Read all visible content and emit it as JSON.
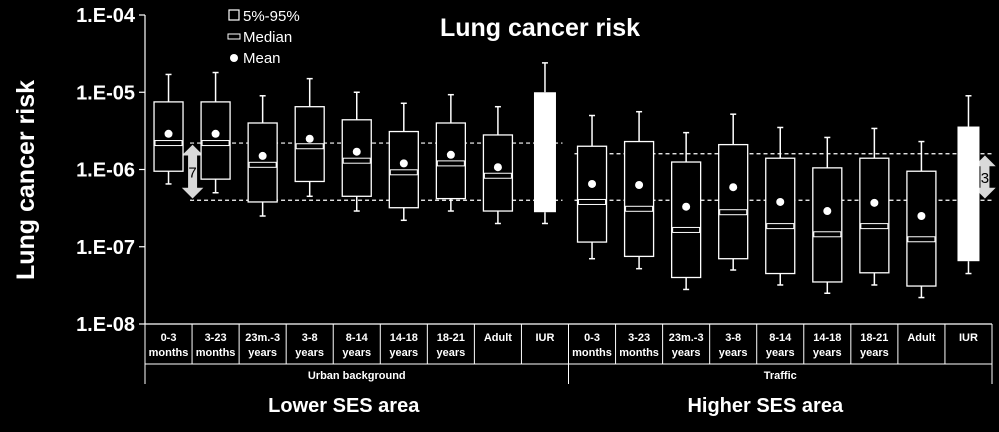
{
  "chart_data": {
    "type": "box",
    "title": "Lung cancer risk",
    "ylabel": "Lung cancer risk",
    "yscale": "log",
    "ylim": [
      1e-08,
      0.0001
    ],
    "yticks": [
      "1.E-08",
      "1.E-07",
      "1.E-06",
      "1.E-05",
      "1.E-04"
    ],
    "legend": [
      "5%-95%",
      "Median",
      "Mean"
    ],
    "legend_position": "top-left",
    "groups": [
      {
        "name": "Urban background",
        "area": "Lower SES area"
      },
      {
        "name": "Traffic",
        "area": "Higher SES area"
      }
    ],
    "categories": [
      {
        "group": 0,
        "label": [
          "0-3",
          "months"
        ],
        "whisker_low": 6.5e-07,
        "p5": 9.5e-07,
        "median": 2.2e-06,
        "p95": 7.5e-06,
        "whisker_high": 1.7e-05,
        "mean": 2.9e-06
      },
      {
        "group": 0,
        "label": [
          "3-23",
          "months"
        ],
        "whisker_low": 5e-07,
        "p5": 7.5e-07,
        "median": 2.2e-06,
        "p95": 7.5e-06,
        "whisker_high": 1.8e-05,
        "mean": 2.9e-06
      },
      {
        "group": 0,
        "label": [
          "23m.-3",
          "years"
        ],
        "whisker_low": 2.5e-07,
        "p5": 3.8e-07,
        "median": 1.15e-06,
        "p95": 4e-06,
        "whisker_high": 9e-06,
        "mean": 1.5e-06
      },
      {
        "group": 0,
        "label": [
          "3-8",
          "years"
        ],
        "whisker_low": 4.5e-07,
        "p5": 7e-07,
        "median": 2e-06,
        "p95": 6.5e-06,
        "whisker_high": 1.5e-05,
        "mean": 2.5e-06
      },
      {
        "group": 0,
        "label": [
          "8-14",
          "years"
        ],
        "whisker_low": 2.9e-07,
        "p5": 4.5e-07,
        "median": 1.3e-06,
        "p95": 4.4e-06,
        "whisker_high": 1e-05,
        "mean": 1.7e-06
      },
      {
        "group": 0,
        "label": [
          "14-18",
          "years"
        ],
        "whisker_low": 2.2e-07,
        "p5": 3.2e-07,
        "median": 9.2e-07,
        "p95": 3.1e-06,
        "whisker_high": 7.2e-06,
        "mean": 1.2e-06
      },
      {
        "group": 0,
        "label": [
          "18-21",
          "years"
        ],
        "whisker_low": 2.9e-07,
        "p5": 4.2e-07,
        "median": 1.2e-06,
        "p95": 4e-06,
        "whisker_high": 9.3e-06,
        "mean": 1.55e-06
      },
      {
        "group": 0,
        "label": [
          "Adult",
          ""
        ],
        "whisker_low": 2e-07,
        "p5": 2.9e-07,
        "median": 8.3e-07,
        "p95": 2.8e-06,
        "whisker_high": 6.5e-06,
        "mean": 1.07e-06
      },
      {
        "group": 0,
        "label": [
          "IUR",
          ""
        ],
        "whisker_low": 2e-07,
        "p5": 2.8e-07,
        "median": null,
        "p95": 1e-05,
        "whisker_high": 2.4e-05,
        "mean": null,
        "solid": true
      },
      {
        "group": 1,
        "label": [
          "0-3",
          "months"
        ],
        "whisker_low": 7e-08,
        "p5": 1.15e-07,
        "median": 3.8e-07,
        "p95": 2e-06,
        "whisker_high": 5e-06,
        "mean": 6.5e-07
      },
      {
        "group": 1,
        "label": [
          "3-23",
          "months"
        ],
        "whisker_low": 5.2e-08,
        "p5": 7.5e-08,
        "median": 3.1e-07,
        "p95": 2.3e-06,
        "whisker_high": 5.6e-06,
        "mean": 6.3e-07
      },
      {
        "group": 1,
        "label": [
          "23m.-3",
          "years"
        ],
        "whisker_low": 2.8e-08,
        "p5": 4e-08,
        "median": 1.65e-07,
        "p95": 1.25e-06,
        "whisker_high": 3e-06,
        "mean": 3.3e-07
      },
      {
        "group": 1,
        "label": [
          "3-8",
          "years"
        ],
        "whisker_low": 5e-08,
        "p5": 7e-08,
        "median": 2.8e-07,
        "p95": 2.1e-06,
        "whisker_high": 5.2e-06,
        "mean": 5.9e-07
      },
      {
        "group": 1,
        "label": [
          "8-14",
          "years"
        ],
        "whisker_low": 3.2e-08,
        "p5": 4.5e-08,
        "median": 1.85e-07,
        "p95": 1.4e-06,
        "whisker_high": 3.5e-06,
        "mean": 3.8e-07
      },
      {
        "group": 1,
        "label": [
          "14-18",
          "years"
        ],
        "whisker_low": 2.5e-08,
        "p5": 3.5e-08,
        "median": 1.45e-07,
        "p95": 1.05e-06,
        "whisker_high": 2.6e-06,
        "mean": 2.9e-07
      },
      {
        "group": 1,
        "label": [
          "18-21",
          "years"
        ],
        "whisker_low": 3.2e-08,
        "p5": 4.6e-08,
        "median": 1.85e-07,
        "p95": 1.4e-06,
        "whisker_high": 3.4e-06,
        "mean": 3.7e-07
      },
      {
        "group": 1,
        "label": [
          "Adult",
          ""
        ],
        "whisker_low": 2.2e-08,
        "p5": 3.1e-08,
        "median": 1.25e-07,
        "p95": 9.5e-07,
        "whisker_high": 2.3e-06,
        "mean": 2.5e-07
      },
      {
        "group": 1,
        "label": [
          "IUR",
          ""
        ],
        "whisker_low": 4.5e-08,
        "p5": 6.5e-08,
        "median": null,
        "p95": 3.6e-06,
        "whisker_high": 9e-06,
        "mean": null,
        "solid": true
      }
    ],
    "reference_lines": [
      {
        "group": 0,
        "upper": 2.2e-06,
        "lower": 4e-07,
        "label": "7"
      },
      {
        "group": 1,
        "upper": 1.6e-06,
        "lower": 4e-07,
        "label": "3"
      }
    ]
  }
}
